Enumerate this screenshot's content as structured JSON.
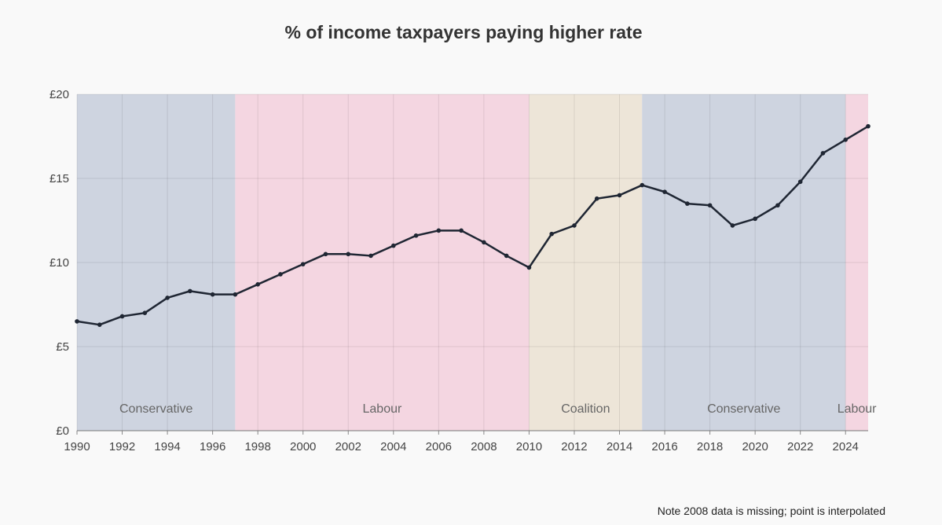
{
  "chart_data": {
    "type": "line",
    "title": "% of income taxpayers paying higher rate",
    "note": "Note 2008 data is missing; point is interpolated",
    "x": [
      1990,
      1991,
      1992,
      1993,
      1994,
      1995,
      1996,
      1997,
      1998,
      1999,
      2000,
      2001,
      2002,
      2003,
      2004,
      2005,
      2006,
      2007,
      2008,
      2009,
      2010,
      2011,
      2012,
      2013,
      2014,
      2015,
      2016,
      2017,
      2018,
      2019,
      2020,
      2021,
      2022,
      2023,
      2024,
      2025
    ],
    "series": [
      {
        "values": [
          6.5,
          6.3,
          6.8,
          7.0,
          7.9,
          8.3,
          8.1,
          8.1,
          8.7,
          9.3,
          9.9,
          10.5,
          10.5,
          10.4,
          11.0,
          11.6,
          11.9,
          11.9,
          11.2,
          10.4,
          9.7,
          11.7,
          12.2,
          13.8,
          14.0,
          14.6,
          14.2,
          13.5,
          13.4,
          12.2,
          12.6,
          13.4,
          14.8,
          16.5,
          17.3,
          18.1
        ]
      }
    ],
    "xlim": [
      1990,
      2025
    ],
    "ylim": [
      0,
      20
    ],
    "x_ticks": [
      "1990",
      "1992",
      "1994",
      "1996",
      "1998",
      "2000",
      "2002",
      "2004",
      "2006",
      "2008",
      "2010",
      "2012",
      "2014",
      "2016",
      "2018",
      "2020",
      "2022",
      "2024"
    ],
    "y_ticks": [
      {
        "value": 0,
        "label": "£0"
      },
      {
        "value": 5,
        "label": "£5"
      },
      {
        "value": 10,
        "label": "£10"
      },
      {
        "value": 15,
        "label": "£15"
      },
      {
        "value": 20,
        "label": "£20"
      }
    ],
    "grid": true,
    "line_color": "#1f2633",
    "periods": [
      {
        "label": "Conservative",
        "start": 1990,
        "end": 1997,
        "color": "#ced4e0"
      },
      {
        "label": "Labour",
        "start": 1997,
        "end": 2010,
        "color": "#f4d6e1"
      },
      {
        "label": "Coalition",
        "start": 2010,
        "end": 2015,
        "color": "#ede5d8"
      },
      {
        "label": "Conservative",
        "start": 2015,
        "end": 2024,
        "color": "#ced4e0"
      },
      {
        "label": "Labour",
        "start": 2024,
        "end": 2025,
        "color": "#f4d6e1"
      }
    ]
  }
}
